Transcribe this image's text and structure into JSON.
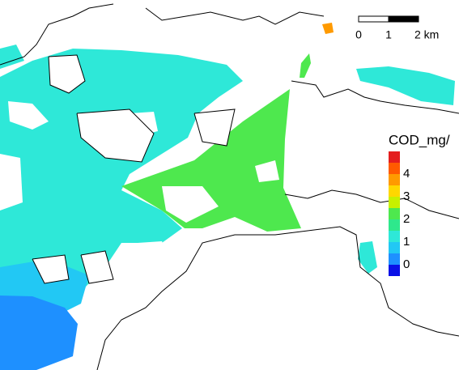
{
  "scale_bar": {
    "labels": [
      "0",
      "1",
      "2 km"
    ]
  },
  "legend": {
    "title": "COD_mg/",
    "labels": [
      "4",
      "3",
      "2",
      "1",
      "0"
    ],
    "swatches": [
      "#e41e1e",
      "#ff5a00",
      "#ff9a00",
      "#ffd700",
      "#c8f000",
      "#4ee84e",
      "#2ee88c",
      "#2ee8d8",
      "#22c8f4",
      "#1e90ff",
      "#0a10e6"
    ]
  }
}
